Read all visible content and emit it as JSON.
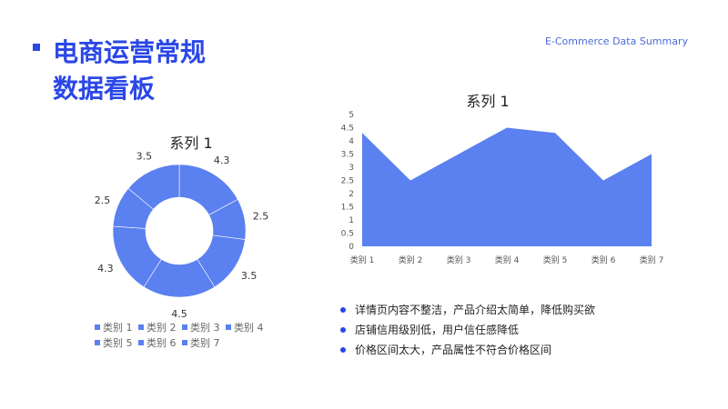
{
  "header": {
    "title_line1": "电商运营常规",
    "title_line2": "数据看板",
    "subtitle": "E-Commerce Data Summary"
  },
  "colors": {
    "accent": "#2b47e6",
    "chart_fill": "#5b80f0",
    "bullet": "#2b47e6"
  },
  "chart_data": [
    {
      "type": "pie",
      "variant": "donut",
      "title": "系列 1",
      "categories": [
        "类别 1",
        "类别 2",
        "类别 3",
        "类别 4",
        "类别 5",
        "类别 6",
        "类别 7"
      ],
      "values": [
        4.3,
        2.5,
        3.5,
        4.5,
        4.3,
        2.5,
        3.5
      ],
      "legend": "bottom"
    },
    {
      "type": "area",
      "title": "系列 1",
      "categories": [
        "类别 1",
        "类别 2",
        "类别 3",
        "类别 4",
        "类别 5",
        "类别 6",
        "类别 7"
      ],
      "values": [
        4.3,
        2.5,
        3.5,
        4.5,
        4.3,
        2.5,
        3.5
      ],
      "ylim": [
        0,
        5
      ],
      "yticks": [
        "0",
        "0.5",
        "1",
        "1.5",
        "2",
        "2.5",
        "3",
        "3.5",
        "4",
        "4.5",
        "5"
      ],
      "grid": false
    }
  ],
  "notes": [
    "详情页内容不整洁，产品介绍太简单，降低购买欲",
    "店铺信用级别低，用户信任感降低",
    "价格区间太大，产品属性不符合价格区间"
  ]
}
